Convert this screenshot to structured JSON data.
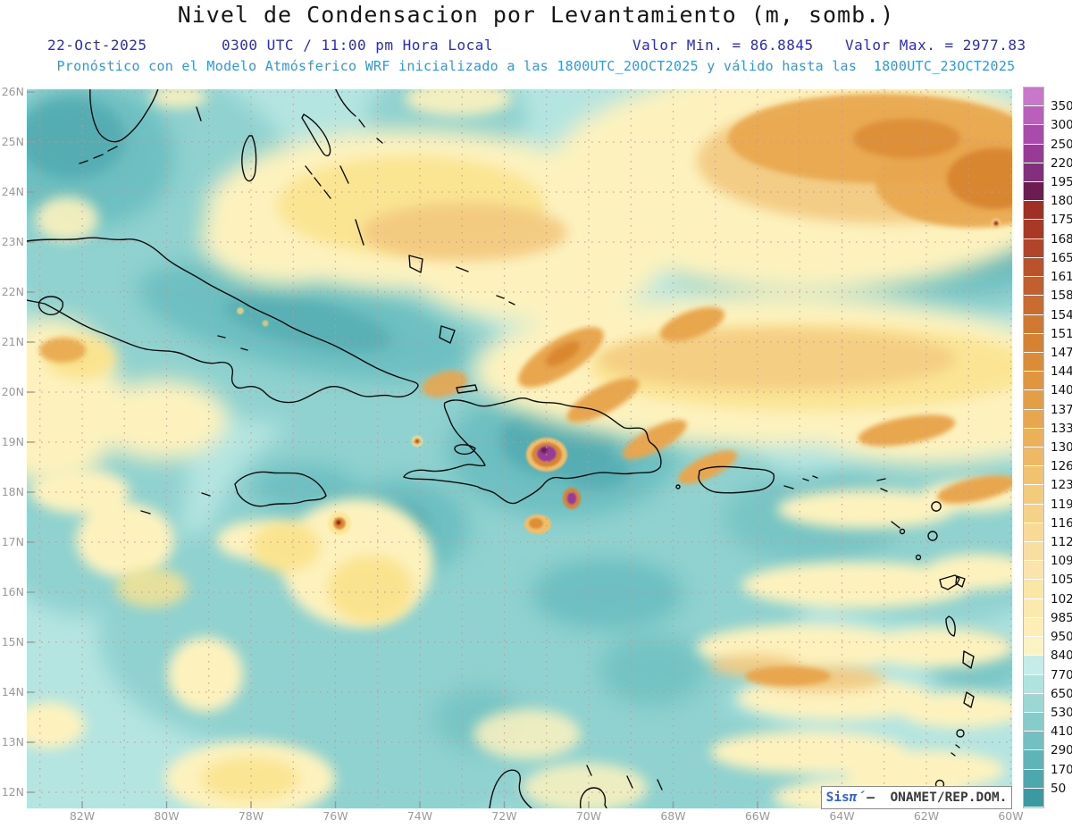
{
  "title": "Nivel de Condensacion por Levantamiento (m, somb.)",
  "header": {
    "date": "22-Oct-2025",
    "time": "0300 UTC / 11:00 pm Hora Local",
    "min": "Valor Min. = 86.8845",
    "max": "Valor Max. = 2977.83",
    "model_line": "Pronóstico con el Modelo Atmósferico WRF inicializado a las 1800UTC_20OCT2025 y válido hasta las  1800UTC_23OCT2025"
  },
  "watermark": {
    "brand": "Sis",
    "symbol": "π́",
    "org": "–  ONAMET/REP.DOM."
  },
  "axes": {
    "lat_labels": [
      "26N",
      "25N",
      "24N",
      "23N",
      "22N",
      "21N",
      "20N",
      "19N",
      "18N",
      "17N",
      "16N",
      "15N",
      "14N",
      "13N",
      "12N"
    ],
    "lon_labels": [
      "82W",
      "80W",
      "78W",
      "76W",
      "74W",
      "72W",
      "70W",
      "68W",
      "66W",
      "64W",
      "62W",
      "60W"
    ]
  },
  "colorbar": {
    "labels": [
      "3500",
      "3000",
      "2500",
      "2200",
      "1950",
      "1800",
      "1750",
      "1685",
      "1650",
      "1615",
      "1580",
      "1545",
      "1510",
      "1475",
      "1440",
      "1405",
      "1370",
      "1335",
      "1300",
      "1265",
      "1230",
      "1195",
      "1160",
      "1125",
      "1090",
      "1055",
      "1020",
      "985",
      "950",
      "840",
      "770",
      "650",
      "530",
      "410",
      "290",
      "170",
      "50"
    ],
    "colors": [
      "#C977C9",
      "#BA60BC",
      "#A94BAC",
      "#973B97",
      "#842E7E",
      "#6B1D52",
      "#A03024",
      "#A93927",
      "#B1452A",
      "#BA522C",
      "#C25F2E",
      "#CA6C30",
      "#D17831",
      "#D68233",
      "#DB8C38",
      "#E0953E",
      "#E49E46",
      "#E8A74E",
      "#ECB058",
      "#EFB963",
      "#F2C26F",
      "#F4CA7B",
      "#F6D288",
      "#F8DA96",
      "#F9DEA1",
      "#FBE3AB",
      "#FBE7A4",
      "#FCEAAC",
      "#FDEEB6",
      "#FDF2C2",
      "#C5ECE8",
      "#AFE3E0",
      "#9BD8D5",
      "#86CCCB",
      "#72C0C1",
      "#5FB4B7",
      "#4CA8AD",
      "#3A99A1"
    ]
  },
  "chart_data": {
    "type": "heatmap",
    "subtype": "filled-contour meteorological map",
    "variable": "Nivel de Condensacion por Levantamiento (Lifting Condensation Level), m (shaded)",
    "model": "WRF",
    "initialized": "1800UTC_20OCT2025",
    "valid_until": "1800UTC_23OCT2025",
    "valid_time": "0300 UTC / 11:00 pm Hora Local, 22-Oct-2025",
    "value_min": 86.8845,
    "value_max": 2977.83,
    "lat_range": [
      "12N",
      "26N"
    ],
    "lon_range": [
      "82W",
      "60W"
    ],
    "contour_levels_m": [
      50,
      170,
      290,
      410,
      530,
      650,
      770,
      840,
      950,
      985,
      1020,
      1055,
      1090,
      1125,
      1160,
      1195,
      1230,
      1265,
      1300,
      1335,
      1370,
      1405,
      1440,
      1475,
      1510,
      1545,
      1580,
      1615,
      1650,
      1685,
      1750,
      1800,
      1950,
      2200,
      2500,
      3000,
      3500
    ],
    "legend_position": "right",
    "grid": "1-degree dotted graticule",
    "region": "Caribbean: Florida, Bahamas, Cuba, Jamaica, Hispaniola, Puerto Rico, Lesser Antilles, northern South America",
    "notable_features": [
      "Large orange area (LCL 1300-1800 m) over the open Atlantic in the northeast, deepest orange toward the top-right corner",
      "East-west band of elevated LCL (950-1550 m, yellow with orange streaks) across the Atlantic east of Hispaniola between about 19N and 22N",
      "Extreme LCL cores (purple/wine, >1950 m, map maximum 2977.83 m) ringed by orange over the mountains of southwestern Hispaniola near 71.5W 18.7N",
      "Yellow patch (950-1300 m) over the Florida Straits and Bahama banks between Florida and Cuba",
      "Low LCL (teal, 170-770 m) over Cuba, the central Caribbean Sea and east of the Lesser Antilles",
      "Scattered pale-yellow streaks (950-1100 m) through the eastern Caribbean and along the left (western) edge",
      "Small isolated high-LCL dots south of eastern Cuba, west of Haiti and near 62W 23.3N"
    ]
  }
}
